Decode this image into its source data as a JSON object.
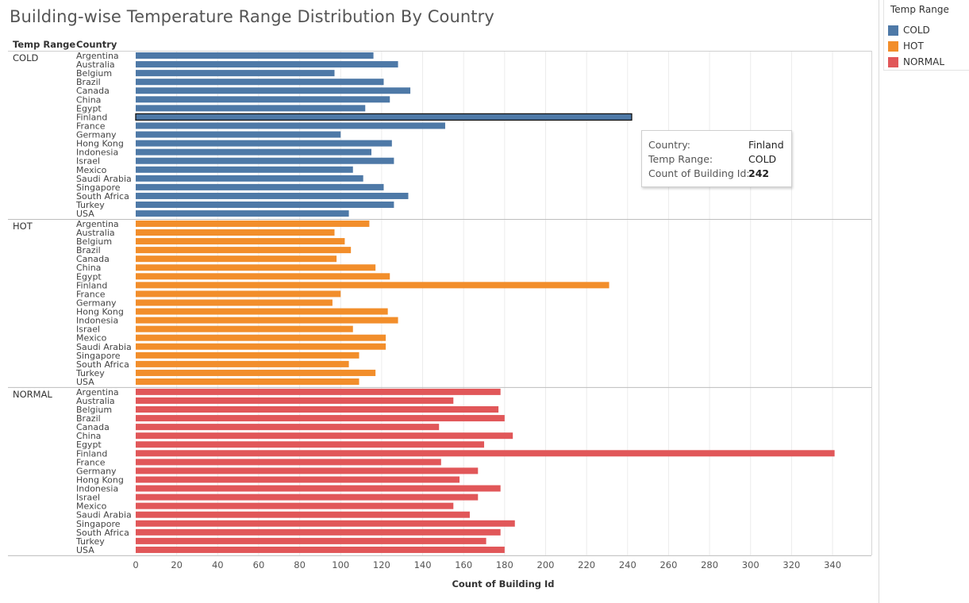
{
  "title": "Building-wise Temperature Range Distribution By Country",
  "headers": {
    "temp_range": "Temp Range",
    "country": "Country"
  },
  "legend": {
    "title": "Temp Range",
    "items": [
      {
        "label": "COLD",
        "color": "#4e79a7"
      },
      {
        "label": "HOT",
        "color": "#f28e2b"
      },
      {
        "label": "NORMAL",
        "color": "#e15759"
      }
    ]
  },
  "tooltip": {
    "rows": [
      {
        "key": "Country:",
        "value": "Finland",
        "bold": false
      },
      {
        "key": "Temp Range:",
        "value": "COLD",
        "bold": false
      },
      {
        "key": "Count of Building Id:",
        "value": "242",
        "bold": true
      }
    ]
  },
  "chart_data": {
    "type": "bar",
    "orientation": "horizontal",
    "xlabel": "Count of Building Id",
    "ylabel": "",
    "xlim": [
      0,
      340
    ],
    "xticks": [
      0,
      20,
      40,
      60,
      80,
      100,
      120,
      140,
      160,
      180,
      200,
      220,
      240,
      260,
      280,
      300,
      320,
      340
    ],
    "grid": true,
    "legend_position": "top-right",
    "highlighted": {
      "group": "COLD",
      "category": "Finland"
    },
    "categories": [
      "Argentina",
      "Australia",
      "Belgium",
      "Brazil",
      "Canada",
      "China",
      "Egypt",
      "Finland",
      "France",
      "Germany",
      "Hong Kong",
      "Indonesia",
      "Israel",
      "Mexico",
      "Saudi Arabia",
      "Singapore",
      "South Africa",
      "Turkey",
      "USA"
    ],
    "series": [
      {
        "name": "COLD",
        "color": "#4e79a7",
        "values": [
          116,
          128,
          97,
          121,
          134,
          124,
          112,
          242,
          151,
          100,
          125,
          115,
          126,
          106,
          111,
          121,
          133,
          126,
          104
        ]
      },
      {
        "name": "HOT",
        "color": "#f28e2b",
        "values": [
          114,
          97,
          102,
          105,
          98,
          117,
          124,
          231,
          100,
          96,
          123,
          128,
          106,
          122,
          122,
          109,
          104,
          117,
          109
        ]
      },
      {
        "name": "NORMAL",
        "color": "#e15759",
        "values": [
          178,
          155,
          177,
          180,
          148,
          184,
          170,
          341,
          149,
          167,
          158,
          178,
          167,
          155,
          163,
          185,
          178,
          171,
          180
        ]
      }
    ]
  }
}
